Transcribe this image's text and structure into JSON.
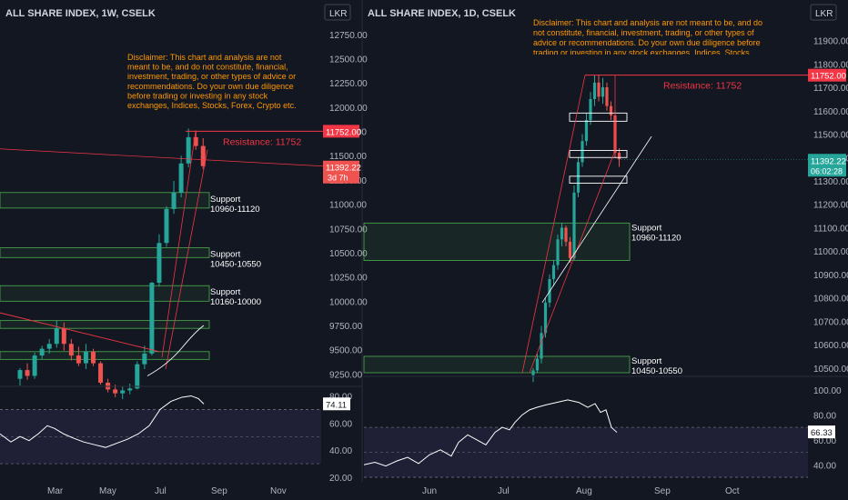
{
  "colors": {
    "background": "#131722",
    "up": "#26a69a",
    "down": "#ef5350",
    "support_line": "#4caf50",
    "resistance": "#f23645",
    "disclaimer": "#ff9800",
    "rsi_band": "#7e57c2",
    "axis_text": "#b2b5be",
    "grid": "#2a2e39"
  },
  "left_panel": {
    "title": "ALL SHARE INDEX, 1W, CSELK",
    "currency_label": "LKR",
    "disclaimer": "Disclaimer: This chart and analysis are not meant to be, and do not constitute, financial, investment, trading, or other types of advice or recommendations. Do your own due diligence before trading or investing in any stock exchanges, Indices, Stocks, Forex, Crypto etc.",
    "resistance_label": "Resistance: 11752",
    "resistance_tag": "11752.00",
    "price_tag": "11392.22",
    "countdown_tag": "3d 7h",
    "rsi_tag": "74.11",
    "supports": [
      {
        "title": "Support",
        "range": "10960-11120",
        "low": 10960,
        "high": 11120
      },
      {
        "title": "Support",
        "range": "10450-10550",
        "low": 10450,
        "high": 10550
      },
      {
        "title": "Support",
        "range": "10160-10000",
        "low": 10000,
        "high": 10160
      }
    ],
    "price_axis": [
      "12750.00",
      "12500.00",
      "12250.00",
      "12000.00",
      "11750.00",
      "11500.00",
      "11250.00",
      "11000.00",
      "10750.00",
      "10500.00",
      "10250.00",
      "10000.00",
      "9750.00",
      "9500.00",
      "9250.00"
    ],
    "rsi_axis": [
      "80.00",
      "60.00",
      "40.00",
      "20.00"
    ],
    "time_axis": [
      "Mar",
      "May",
      "Jul",
      "Sep",
      "Nov"
    ]
  },
  "right_panel": {
    "title": "ALL SHARE INDEX, 1D, CSELK",
    "currency_label": "LKR",
    "disclaimer": "Disclaimer: This chart and analysis are not meant to be, and do not constitute, financial, investment, trading, or other types of advice or recommendations. Do your own due diligence before trading or investing in any stock exchanges, Indices, Stocks, Forex, Crypto etc.",
    "resistance_label": "Resistance: 11752",
    "resistance_tag": "11752.00",
    "price_tag": "11392.22",
    "countdown_tag": "06:02:28",
    "rsi_tag": "66.33",
    "supports": [
      {
        "title": "Support",
        "range": "10960-11120",
        "low": 10960,
        "high": 11120
      },
      {
        "title": "Support",
        "range": "10450-10550",
        "low": 10450,
        "high": 10550
      }
    ],
    "price_axis": [
      "11900.00",
      "11800.00",
      "11700.00",
      "11600.00",
      "11500.00",
      "11400.00",
      "11300.00",
      "11200.00",
      "11100.00",
      "11000.00",
      "10900.00",
      "10800.00",
      "10700.00",
      "10600.00",
      "10500.00"
    ],
    "rsi_axis": [
      "100.00",
      "80.00",
      "60.00",
      "40.00"
    ],
    "time_axis": [
      "Jun",
      "Jul",
      "Aug",
      "Sep",
      "Oct"
    ]
  },
  "chart_data": [
    {
      "type": "candlestick",
      "title": "ALL SHARE INDEX, 1W, CSELK",
      "ylim": [
        9150,
        12880
      ],
      "resistance": 11752,
      "last_price": 11392.22,
      "candles": [
        {
          "o": 9200,
          "h": 9310,
          "l": 9130,
          "c": 9290
        },
        {
          "o": 9290,
          "h": 9360,
          "l": 9190,
          "c": 9230
        },
        {
          "o": 9230,
          "h": 9470,
          "l": 9200,
          "c": 9440
        },
        {
          "o": 9440,
          "h": 9540,
          "l": 9400,
          "c": 9510
        },
        {
          "o": 9510,
          "h": 9610,
          "l": 9460,
          "c": 9560
        },
        {
          "o": 9560,
          "h": 9800,
          "l": 9520,
          "c": 9720
        },
        {
          "o": 9720,
          "h": 9780,
          "l": 9490,
          "c": 9560
        },
        {
          "o": 9560,
          "h": 9610,
          "l": 9390,
          "c": 9440
        },
        {
          "o": 9440,
          "h": 9530,
          "l": 9330,
          "c": 9360
        },
        {
          "o": 9360,
          "h": 9560,
          "l": 9300,
          "c": 9480
        },
        {
          "o": 9480,
          "h": 9510,
          "l": 9330,
          "c": 9360
        },
        {
          "o": 9360,
          "h": 9380,
          "l": 9140,
          "c": 9160
        },
        {
          "o": 9160,
          "h": 9200,
          "l": 9060,
          "c": 9090
        },
        {
          "o": 9090,
          "h": 9140,
          "l": 9010,
          "c": 9050
        },
        {
          "o": 9050,
          "h": 9120,
          "l": 8990,
          "c": 9080
        },
        {
          "o": 9080,
          "h": 9150,
          "l": 9040,
          "c": 9100
        },
        {
          "o": 9100,
          "h": 9380,
          "l": 9090,
          "c": 9350
        },
        {
          "o": 9350,
          "h": 9540,
          "l": 9300,
          "c": 9460
        },
        {
          "o": 9460,
          "h": 10200,
          "l": 9440,
          "c": 10190
        },
        {
          "o": 10190,
          "h": 10690,
          "l": 10150,
          "c": 10600
        },
        {
          "o": 10600,
          "h": 10980,
          "l": 10560,
          "c": 10950
        },
        {
          "o": 10950,
          "h": 11240,
          "l": 10900,
          "c": 11120
        },
        {
          "o": 11120,
          "h": 11500,
          "l": 11070,
          "c": 11420
        },
        {
          "o": 11420,
          "h": 11780,
          "l": 11380,
          "c": 11690
        },
        {
          "o": 11690,
          "h": 11760,
          "l": 11560,
          "c": 11600
        },
        {
          "o": 11600,
          "h": 11680,
          "l": 11360,
          "c": 11392.22
        }
      ]
    },
    {
      "type": "candlestick",
      "title": "ALL SHARE INDEX, 1D, CSELK",
      "ylim": [
        10480,
        11980
      ],
      "resistance": 11752,
      "last_price": 11392.22,
      "candles": [
        {
          "o": 10470,
          "h": 10500,
          "l": 10440,
          "c": 10490
        },
        {
          "o": 10490,
          "h": 10560,
          "l": 10480,
          "c": 10540
        },
        {
          "o": 10540,
          "h": 10680,
          "l": 10520,
          "c": 10650
        },
        {
          "o": 10650,
          "h": 10800,
          "l": 10630,
          "c": 10780
        },
        {
          "o": 10780,
          "h": 10900,
          "l": 10760,
          "c": 10880
        },
        {
          "o": 10880,
          "h": 10960,
          "l": 10850,
          "c": 10940
        },
        {
          "o": 10940,
          "h": 11070,
          "l": 10920,
          "c": 11050
        },
        {
          "o": 11050,
          "h": 11120,
          "l": 11020,
          "c": 11100
        },
        {
          "o": 11100,
          "h": 11110,
          "l": 11020,
          "c": 11040
        },
        {
          "o": 11040,
          "h": 11060,
          "l": 10950,
          "c": 10970
        },
        {
          "o": 10970,
          "h": 11280,
          "l": 10960,
          "c": 11250
        },
        {
          "o": 11250,
          "h": 11400,
          "l": 11230,
          "c": 11380
        },
        {
          "o": 11380,
          "h": 11500,
          "l": 11360,
          "c": 11470
        },
        {
          "o": 11470,
          "h": 11590,
          "l": 11450,
          "c": 11560
        },
        {
          "o": 11560,
          "h": 11680,
          "l": 11540,
          "c": 11650
        },
        {
          "o": 11650,
          "h": 11750,
          "l": 11620,
          "c": 11720
        },
        {
          "o": 11720,
          "h": 11752,
          "l": 11640,
          "c": 11660
        },
        {
          "o": 11660,
          "h": 11740,
          "l": 11630,
          "c": 11700
        },
        {
          "o": 11700,
          "h": 11720,
          "l": 11600,
          "c": 11620
        },
        {
          "o": 11620,
          "h": 11640,
          "l": 11560,
          "c": 11580
        },
        {
          "o": 11580,
          "h": 11600,
          "l": 11400,
          "c": 11420
        },
        {
          "o": 11420,
          "h": 11440,
          "l": 11360,
          "c": 11392.22
        }
      ]
    }
  ]
}
